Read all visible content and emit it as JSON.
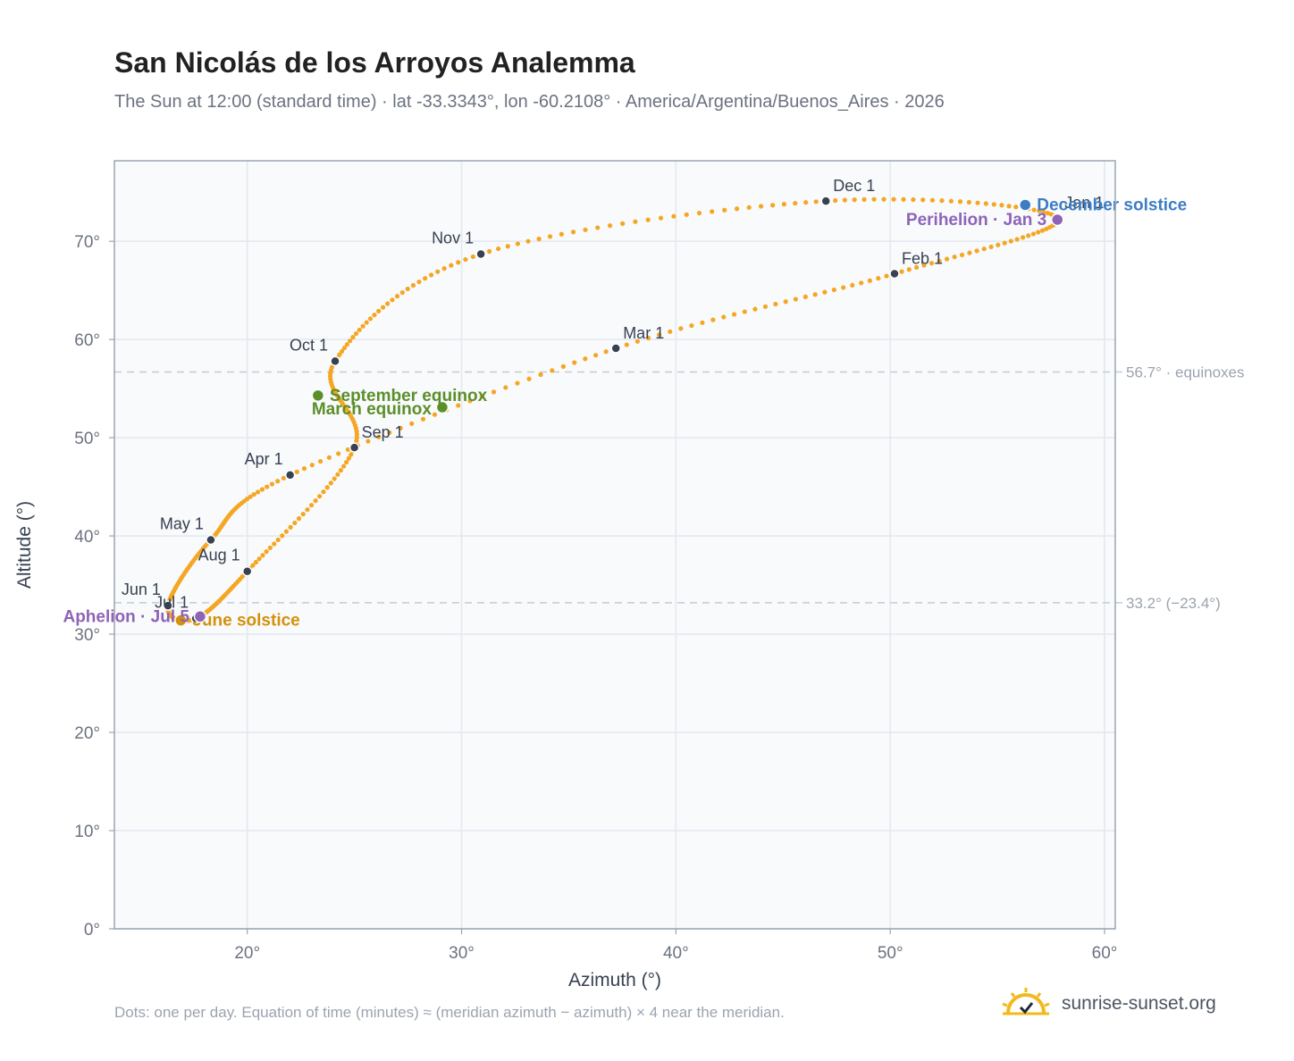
{
  "header": {
    "title": "San Nicolás de los Arroyos Analemma",
    "subtitle": "The Sun at 12:00 (standard time) · lat -33.3343°, lon -60.2108° · America/Argentina/Buenos_Aires · 2026"
  },
  "footer": {
    "note": "Dots: one per day. Equation of time (minutes) ≈ (meridian azimuth − azimuth) × 4 near the meridian.",
    "brand": "sunrise-sunset.org"
  },
  "colors": {
    "curve": "#f5a623",
    "month_marker": "#374151",
    "equinox": "#5a8f29",
    "june_solstice": "#d4910a",
    "december_solstice": "#3b7dc4",
    "apsis": "#8e63b8",
    "reference_line": "#c5ccd4",
    "plot_background": "#f8fafc"
  },
  "chart_data": {
    "type": "scatter",
    "xlabel": "Azimuth (°)",
    "ylabel": "Altitude (°)",
    "xlim": [
      13.8,
      60.5
    ],
    "ylim": [
      0,
      78.2
    ],
    "xticks": [
      20,
      30,
      40,
      50,
      60
    ],
    "yticks": [
      0,
      10,
      20,
      30,
      40,
      50,
      60,
      70
    ],
    "xtick_labels": [
      "20°",
      "30°",
      "40°",
      "50°",
      "60°"
    ],
    "ytick_labels": [
      "0°",
      "10°",
      "20°",
      "30°",
      "40°",
      "50°",
      "60°",
      "70°"
    ],
    "grid": true,
    "reference_lines": [
      {
        "y": 56.7,
        "label": "56.7° · equinoxes"
      },
      {
        "y": 33.2,
        "label": "33.2° (−23.4°)"
      }
    ],
    "month_markers": [
      {
        "label": "Jan 1",
        "az": 57.8,
        "alt": 72.4
      },
      {
        "label": "Feb 1",
        "az": 50.2,
        "alt": 66.7
      },
      {
        "label": "Mar 1",
        "az": 37.2,
        "alt": 59.1
      },
      {
        "label": "Apr 1",
        "az": 22.0,
        "alt": 46.2
      },
      {
        "label": "May 1",
        "az": 18.3,
        "alt": 39.6
      },
      {
        "label": "Jun 1",
        "az": 16.3,
        "alt": 32.9
      },
      {
        "label": "Jul 1",
        "az": 17.6,
        "alt": 31.6
      },
      {
        "label": "Aug 1",
        "az": 20.0,
        "alt": 36.4
      },
      {
        "label": "Sep 1",
        "az": 25.0,
        "alt": 49.0
      },
      {
        "label": "Oct 1",
        "az": 24.1,
        "alt": 57.8
      },
      {
        "label": "Nov 1",
        "az": 30.9,
        "alt": 68.7
      },
      {
        "label": "Dec 1",
        "az": 47.0,
        "alt": 74.1
      }
    ],
    "events": [
      {
        "label": "March equinox",
        "az": 29.1,
        "alt": 53.1,
        "color_key": "equinox"
      },
      {
        "label": "September equinox",
        "az": 23.3,
        "alt": 54.3,
        "color_key": "equinox"
      },
      {
        "label": "June solstice",
        "az": 16.9,
        "alt": 31.4,
        "color_key": "june_solstice"
      },
      {
        "label": "December solstice",
        "az": 56.3,
        "alt": 73.7,
        "color_key": "december_solstice"
      },
      {
        "label": "Perihelion · Jan 3",
        "az": 57.8,
        "alt": 72.2,
        "color_key": "apsis"
      },
      {
        "label": "Aphelion · Jul 5",
        "az": 17.8,
        "alt": 31.8,
        "color_key": "apsis"
      }
    ]
  }
}
